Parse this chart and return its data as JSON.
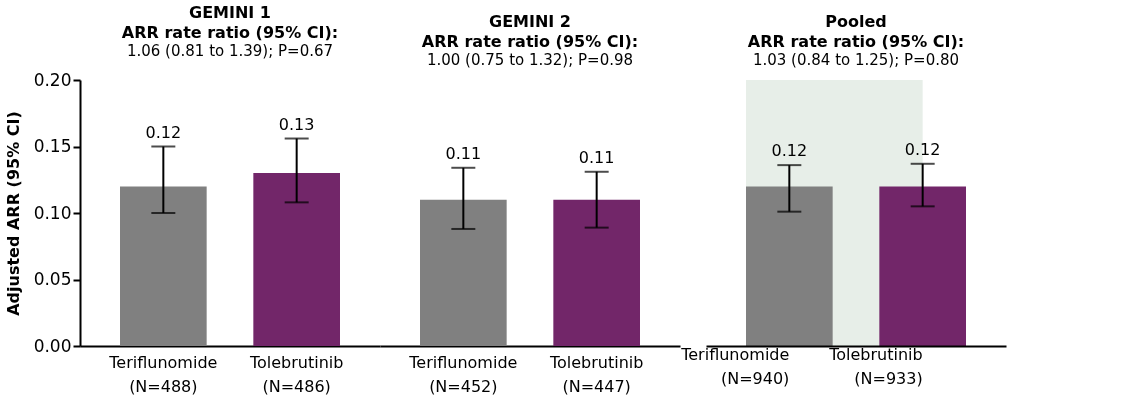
{
  "chart_data": [
    {
      "type": "bar",
      "title": "GEMINI 1",
      "subtitle": "ARR rate ratio (95% CI):",
      "annotations": [
        "1.06 (0.81 to 1.39); P=0.67"
      ],
      "ylabel": "Adjusted ARR (95% CI)",
      "categories": [
        "Teriflunomide\n(N=488)",
        "Tolebrutinib\n(N=486)"
      ],
      "values": [
        0.12,
        0.13
      ],
      "colors": [
        "#808080",
        "#722669"
      ],
      "errors": [
        [
          0.1,
          0.15
        ],
        [
          0.108,
          0.156
        ]
      ],
      "data_labels": true,
      "ylim": [
        0,
        0.2
      ],
      "yticks": [
        {
          "value": 0,
          "label": "0.00"
        },
        {
          "value": 0.05,
          "label": "0.05"
        },
        {
          "value": 0.1,
          "label": "0.10"
        },
        {
          "value": 0.15,
          "label": "0.15"
        },
        {
          "value": 0.2,
          "label": "0.20"
        }
      ],
      "grid": false
    },
    {
      "type": "bar",
      "title": "GEMINI 2",
      "subtitle": "ARR rate ratio (95% CI):",
      "annotations": [
        "1.00 (0.75 to 1.32); P=0.98"
      ],
      "categories": [
        "Teriflunomide\n(N=452)",
        "Tolebrutinib\n(N=447)"
      ],
      "values": [
        0.11,
        0.11
      ],
      "colors": [
        "#808080",
        "#722669"
      ],
      "errors": [
        [
          0.088,
          0.134
        ],
        [
          0.089,
          0.131
        ]
      ],
      "data_labels": true,
      "ylim": [
        0,
        0.2
      ],
      "tick_labels": "x",
      "grid": false
    },
    {
      "type": "bar",
      "title": "Pooled",
      "subtitle": "ARR rate ratio (95% CI):",
      "annotations": [
        "1.03 (0.84 to 1.25); P=0.80"
      ],
      "categories": [
        "Teriflunomide\n(N=940)",
        "Tolebrutinib\n(N=933)"
      ],
      "values": [
        0.12,
        0.12
      ],
      "colors": [
        "#808080",
        "#722669"
      ],
      "errors": [
        [
          0.101,
          0.136
        ],
        [
          0.105,
          0.137
        ]
      ],
      "data_labels": true,
      "ylim": [
        0,
        0.2
      ],
      "tick_labels": "x",
      "grid": false,
      "bands": [
        {
          "axis": "x",
          "from": "Teriflunomide\n(N=940)",
          "to": "Tolebrutinib\n(N=933)",
          "color": "#e7eee8"
        }
      ]
    }
  ]
}
